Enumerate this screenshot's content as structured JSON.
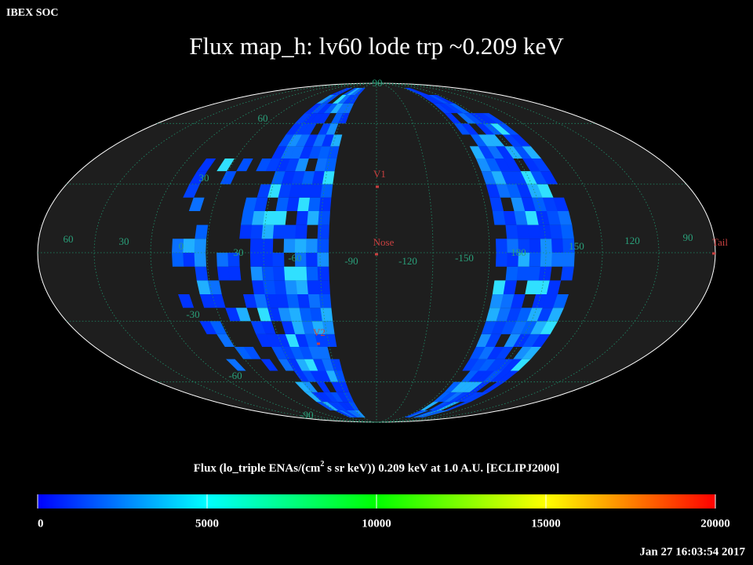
{
  "header": {
    "app": "IBEX SOC",
    "title": "Flux   map_h: lv60 lode trp ~0.209 keV",
    "timestamp": "Jan 27 16:03:54 2017"
  },
  "map": {
    "longitude_labels": [
      "60",
      "30",
      "0",
      "30",
      "-60",
      "-90",
      "-120",
      "-150",
      "180",
      "150",
      "120",
      "90"
    ],
    "latitude_labels": [
      "90",
      "60",
      "30",
      "-30",
      "-60",
      "-90"
    ],
    "markers": [
      "V1",
      "Nose",
      "V2",
      "Tail"
    ]
  },
  "colorbar": {
    "caption_parts": [
      "Flux (lo_triple ENAs/(cm",
      "2",
      " s sr keV))  0.209 keV at 1.0 A.U. [ECLIPJ2000]"
    ],
    "lim": [
      0,
      20000
    ],
    "ticks": [
      0,
      5000,
      10000,
      15000,
      20000
    ]
  }
}
